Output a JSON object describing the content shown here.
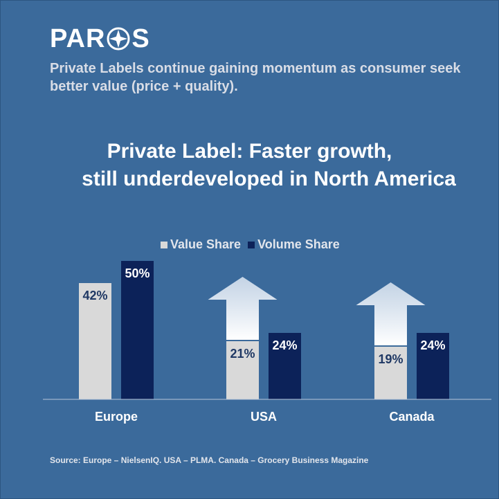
{
  "brand": {
    "logo_text_left": "PAR",
    "logo_text_right": "S"
  },
  "subtitle": "Private Labels continue gaining momentum as consumer seek better value (price + quality).",
  "headline": {
    "line1": "Private Label: Faster growth,",
    "line2": "still underdeveloped in North America"
  },
  "source": "Source: Europe – NielsenIQ. USA – PLMA. Canada – Grocery Business  Magazine",
  "colors": {
    "background": "#3b6a9b",
    "value_share": "#d9d9d9",
    "volume_share": "#0c2259",
    "arrow": "#dce6f2"
  },
  "chart_data": {
    "type": "bar",
    "categories": [
      "Europe",
      "USA",
      "Canada"
    ],
    "series": [
      {
        "name": "Value Share",
        "values": [
          42,
          21,
          19
        ],
        "labels": [
          "42%",
          "21%",
          "19%"
        ]
      },
      {
        "name": "Volume Share",
        "values": [
          50,
          24,
          24
        ],
        "labels": [
          "50%",
          "24%",
          "24%"
        ]
      }
    ],
    "ylim": [
      0,
      50
    ],
    "grid": false,
    "legend_position": "top-center",
    "growth_arrows_on": [
      "USA",
      "Canada"
    ]
  }
}
